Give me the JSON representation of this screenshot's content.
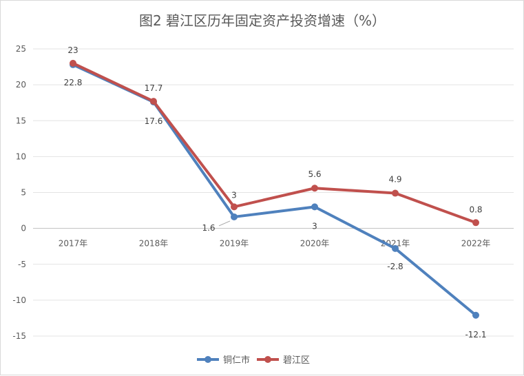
{
  "chart_data": {
    "type": "line",
    "title": "图2 碧江区历年固定资产投资增速（%）",
    "categories": [
      "2017年",
      "2018年",
      "2019年",
      "2020年",
      "2021年",
      "2022年"
    ],
    "series": [
      {
        "name": "铜仁市",
        "color": "#4f81bd",
        "values": [
          22.8,
          17.6,
          1.6,
          3,
          -2.8,
          -12.1
        ]
      },
      {
        "name": "碧江区",
        "color": "#c0504d",
        "values": [
          23,
          17.7,
          3,
          5.6,
          4.9,
          0.8
        ]
      }
    ],
    "ylim": [
      -15,
      25
    ],
    "yticks": [
      25,
      20,
      15,
      10,
      5,
      0,
      -5,
      -10,
      -15
    ],
    "xlabel": "",
    "ylabel": "",
    "grid": true,
    "legend": "bottom"
  }
}
